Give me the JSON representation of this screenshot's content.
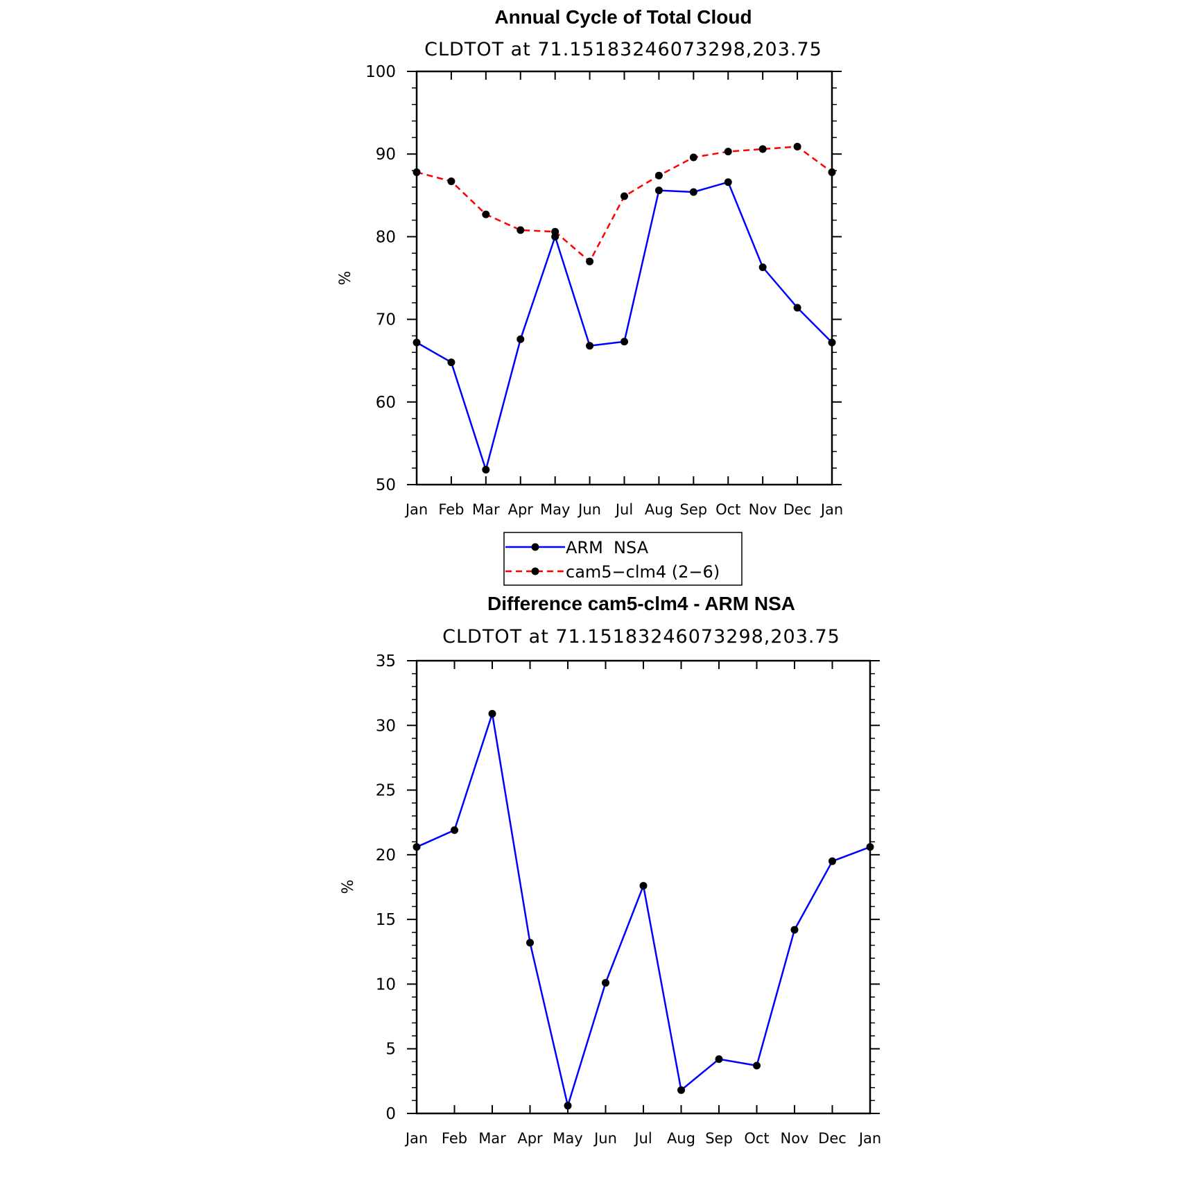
{
  "chart_data": [
    {
      "type": "line",
      "title": "Annual Cycle of Total Cloud",
      "subtitle": "CLDTOT at 71.15183246073298,203.75",
      "xlabel": "",
      "ylabel": "%",
      "categories": [
        "Jan",
        "Feb",
        "Mar",
        "Apr",
        "May",
        "Jun",
        "Jul",
        "Aug",
        "Sep",
        "Oct",
        "Nov",
        "Dec",
        "Jan"
      ],
      "ylim": [
        50,
        100
      ],
      "yticks": [
        50,
        60,
        70,
        80,
        90,
        100
      ],
      "grid": false,
      "legend_position": "below",
      "series": [
        {
          "name": "ARM  NSA",
          "color": "#0000ff",
          "dash": "solid",
          "values": [
            67.2,
            64.8,
            51.8,
            67.6,
            80.0,
            66.8,
            67.3,
            85.6,
            85.4,
            86.6,
            76.3,
            71.4,
            67.2
          ]
        },
        {
          "name": "cam5−clm4 (2−6)",
          "color": "#ff0000",
          "dash": "dashed",
          "values": [
            87.8,
            86.7,
            82.7,
            80.8,
            80.6,
            77.0,
            84.9,
            87.4,
            89.6,
            90.3,
            90.6,
            90.9,
            87.8
          ]
        }
      ]
    },
    {
      "type": "line",
      "title": "Difference cam5-clm4 - ARM NSA",
      "subtitle": "CLDTOT at 71.15183246073298,203.75",
      "xlabel": "",
      "ylabel": "%",
      "categories": [
        "Jan",
        "Feb",
        "Mar",
        "Apr",
        "May",
        "Jun",
        "Jul",
        "Aug",
        "Sep",
        "Oct",
        "Nov",
        "Dec",
        "Jan"
      ],
      "ylim": [
        0,
        35
      ],
      "yticks": [
        0,
        5,
        10,
        15,
        20,
        25,
        30,
        35
      ],
      "grid": false,
      "series": [
        {
          "color": "#0000ff",
          "dash": "solid",
          "values": [
            20.6,
            21.9,
            30.9,
            13.2,
            0.6,
            10.1,
            17.6,
            1.8,
            4.2,
            3.7,
            14.2,
            19.5,
            20.6
          ]
        }
      ]
    }
  ]
}
